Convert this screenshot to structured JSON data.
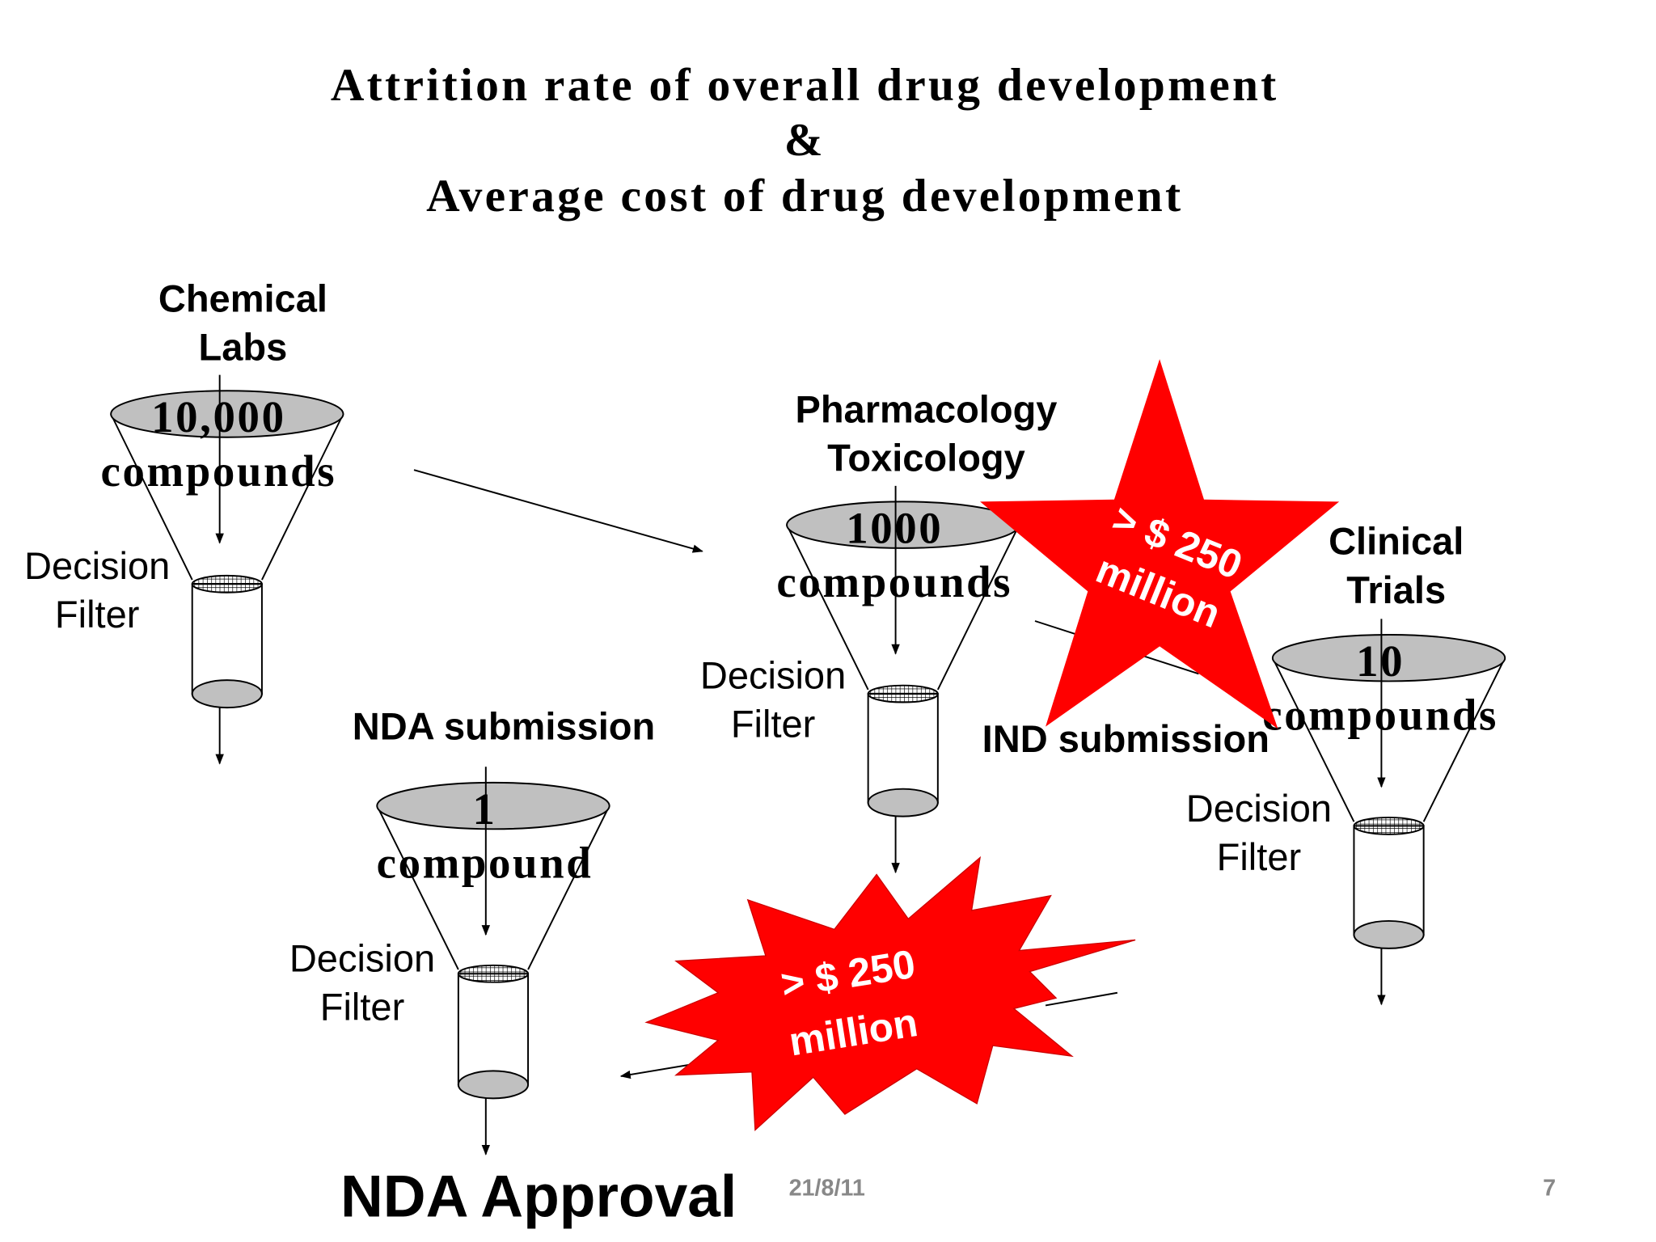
{
  "header": {
    "title": [
      "Attrition rate of overall drug development",
      "&",
      "Average cost of drug development"
    ]
  },
  "stages": [
    {
      "label": [
        "Chemical",
        "Labs"
      ],
      "count": "10,000",
      "unit": "compounds",
      "filter": [
        "Decision",
        "Filter"
      ]
    },
    {
      "label": [
        "Pharmacology",
        "Toxicology"
      ],
      "count": "1000",
      "unit": "compounds",
      "filter": [
        "Decision",
        "Filter"
      ]
    },
    {
      "label": [
        "Clinical",
        "Trials"
      ],
      "count": "10",
      "unit": "compounds",
      "filter": [
        "Decision",
        "Filter"
      ]
    },
    {
      "label": [
        "NDA submission"
      ],
      "count": "1",
      "unit": "compound",
      "filter": [
        "Decision",
        "Filter"
      ]
    }
  ],
  "ind_submission": "IND submission",
  "costs": [
    [
      "> $ 250",
      "million"
    ],
    [
      "> $ 250",
      "million"
    ]
  ],
  "nda_approval": "NDA Approval",
  "footer": {
    "date": "21/8/11",
    "page": "7"
  }
}
